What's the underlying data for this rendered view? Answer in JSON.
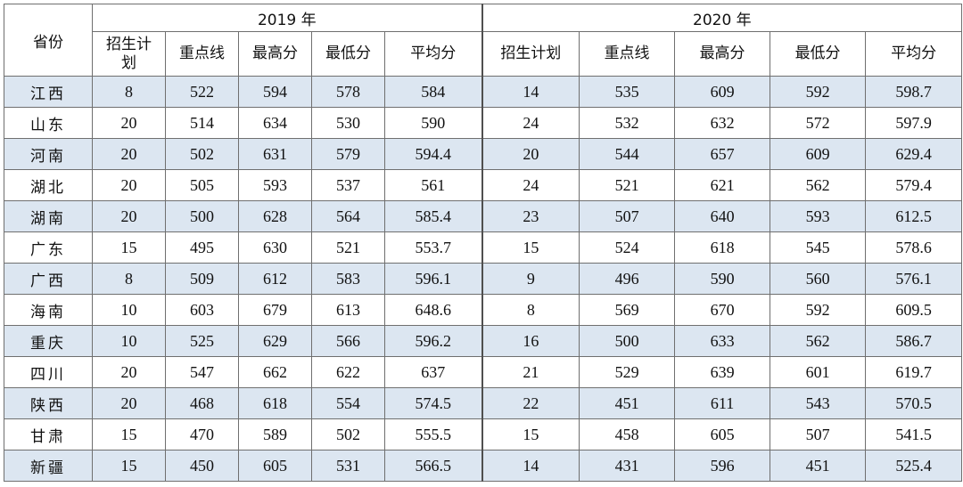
{
  "header": {
    "province_label": "省份",
    "year_2019": "2019 年",
    "year_2020": "2020 年",
    "columns_2019": [
      "招生计划",
      "重点线",
      "最高分",
      "最低分",
      "平均分"
    ],
    "columns_2020": [
      "招生计划",
      "重点线",
      "最高分",
      "最低分",
      "平均分"
    ]
  },
  "rows": [
    {
      "province": "江西",
      "y2019": [
        "8",
        "522",
        "594",
        "578",
        "584"
      ],
      "y2020": [
        "14",
        "535",
        "609",
        "592",
        "598.7"
      ]
    },
    {
      "province": "山东",
      "y2019": [
        "20",
        "514",
        "634",
        "530",
        "590"
      ],
      "y2020": [
        "24",
        "532",
        "632",
        "572",
        "597.9"
      ]
    },
    {
      "province": "河南",
      "y2019": [
        "20",
        "502",
        "631",
        "579",
        "594.4"
      ],
      "y2020": [
        "20",
        "544",
        "657",
        "609",
        "629.4"
      ]
    },
    {
      "province": "湖北",
      "y2019": [
        "20",
        "505",
        "593",
        "537",
        "561"
      ],
      "y2020": [
        "24",
        "521",
        "621",
        "562",
        "579.4"
      ]
    },
    {
      "province": "湖南",
      "y2019": [
        "20",
        "500",
        "628",
        "564",
        "585.4"
      ],
      "y2020": [
        "23",
        "507",
        "640",
        "593",
        "612.5"
      ]
    },
    {
      "province": "广东",
      "y2019": [
        "15",
        "495",
        "630",
        "521",
        "553.7"
      ],
      "y2020": [
        "15",
        "524",
        "618",
        "545",
        "578.6"
      ]
    },
    {
      "province": "广西",
      "y2019": [
        "8",
        "509",
        "612",
        "583",
        "596.1"
      ],
      "y2020": [
        "9",
        "496",
        "590",
        "560",
        "576.1"
      ]
    },
    {
      "province": "海南",
      "y2019": [
        "10",
        "603",
        "679",
        "613",
        "648.6"
      ],
      "y2020": [
        "8",
        "569",
        "670",
        "592",
        "609.5"
      ]
    },
    {
      "province": "重庆",
      "y2019": [
        "10",
        "525",
        "629",
        "566",
        "596.2"
      ],
      "y2020": [
        "16",
        "500",
        "633",
        "562",
        "586.7"
      ]
    },
    {
      "province": "四川",
      "y2019": [
        "20",
        "547",
        "662",
        "622",
        "637"
      ],
      "y2020": [
        "21",
        "529",
        "639",
        "601",
        "619.7"
      ]
    },
    {
      "province": "陕西",
      "y2019": [
        "20",
        "468",
        "618",
        "554",
        "574.5"
      ],
      "y2020": [
        "22",
        "451",
        "611",
        "543",
        "570.5"
      ]
    },
    {
      "province": "甘肃",
      "y2019": [
        "15",
        "470",
        "589",
        "502",
        "555.5"
      ],
      "y2020": [
        "15",
        "458",
        "605",
        "507",
        "541.5"
      ]
    },
    {
      "province": "新疆",
      "y2019": [
        "15",
        "450",
        "605",
        "531",
        "566.5"
      ],
      "y2020": [
        "14",
        "431",
        "596",
        "451",
        "525.4"
      ]
    }
  ]
}
